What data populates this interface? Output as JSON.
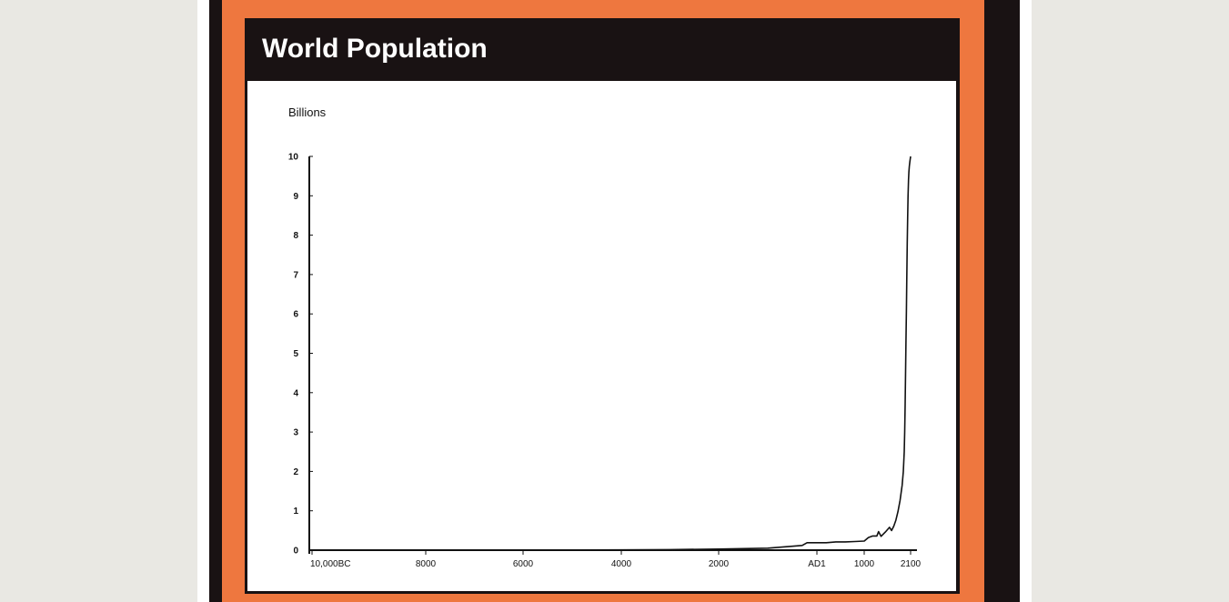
{
  "title": "World Population",
  "chart_data": {
    "type": "line",
    "title": "World Population",
    "ylabel": "Billions",
    "xlabel": "",
    "ylim": [
      0,
      10
    ],
    "xlim": [
      -10000,
      2100
    ],
    "y_ticks": [
      "0",
      "1",
      "2",
      "3",
      "4",
      "5",
      "6",
      "7",
      "8",
      "9",
      "10"
    ],
    "x_ticks": [
      {
        "value": -10000,
        "label": "10,000BC"
      },
      {
        "value": -8000,
        "label": "8000"
      },
      {
        "value": -6000,
        "label": "6000"
      },
      {
        "value": -4000,
        "label": "4000"
      },
      {
        "value": -2000,
        "label": "2000"
      },
      {
        "value": 1,
        "label": "AD1"
      },
      {
        "value": 1000,
        "label": "1000"
      },
      {
        "value": 2100,
        "label": "2100"
      }
    ],
    "grid": false,
    "series": [
      {
        "color": "#111111",
        "x": [
          -10000,
          -8000,
          -6000,
          -5000,
          -4000,
          -3000,
          -2000,
          -1000,
          -500,
          -300,
          -200,
          1,
          200,
          400,
          600,
          800,
          1000,
          1100,
          1200,
          1300,
          1340,
          1400,
          1500,
          1600,
          1650,
          1700,
          1750,
          1800,
          1850,
          1900,
          1927,
          1950,
          1960,
          1970,
          1980,
          1990,
          2000,
          2010,
          2020,
          2030,
          2040,
          2050,
          2060,
          2070,
          2080,
          2090,
          2100
        ],
        "y": [
          0.004,
          0.005,
          0.005,
          0.005,
          0.007,
          0.014,
          0.027,
          0.05,
          0.1,
          0.12,
          0.19,
          0.19,
          0.19,
          0.21,
          0.21,
          0.22,
          0.23,
          0.32,
          0.36,
          0.36,
          0.47,
          0.35,
          0.46,
          0.58,
          0.5,
          0.61,
          0.76,
          0.98,
          1.26,
          1.65,
          2.0,
          2.5,
          3.0,
          3.7,
          4.4,
          5.3,
          6.1,
          6.9,
          7.8,
          8.5,
          9.0,
          9.4,
          9.6,
          9.75,
          9.85,
          9.92,
          10.0
        ]
      }
    ]
  }
}
